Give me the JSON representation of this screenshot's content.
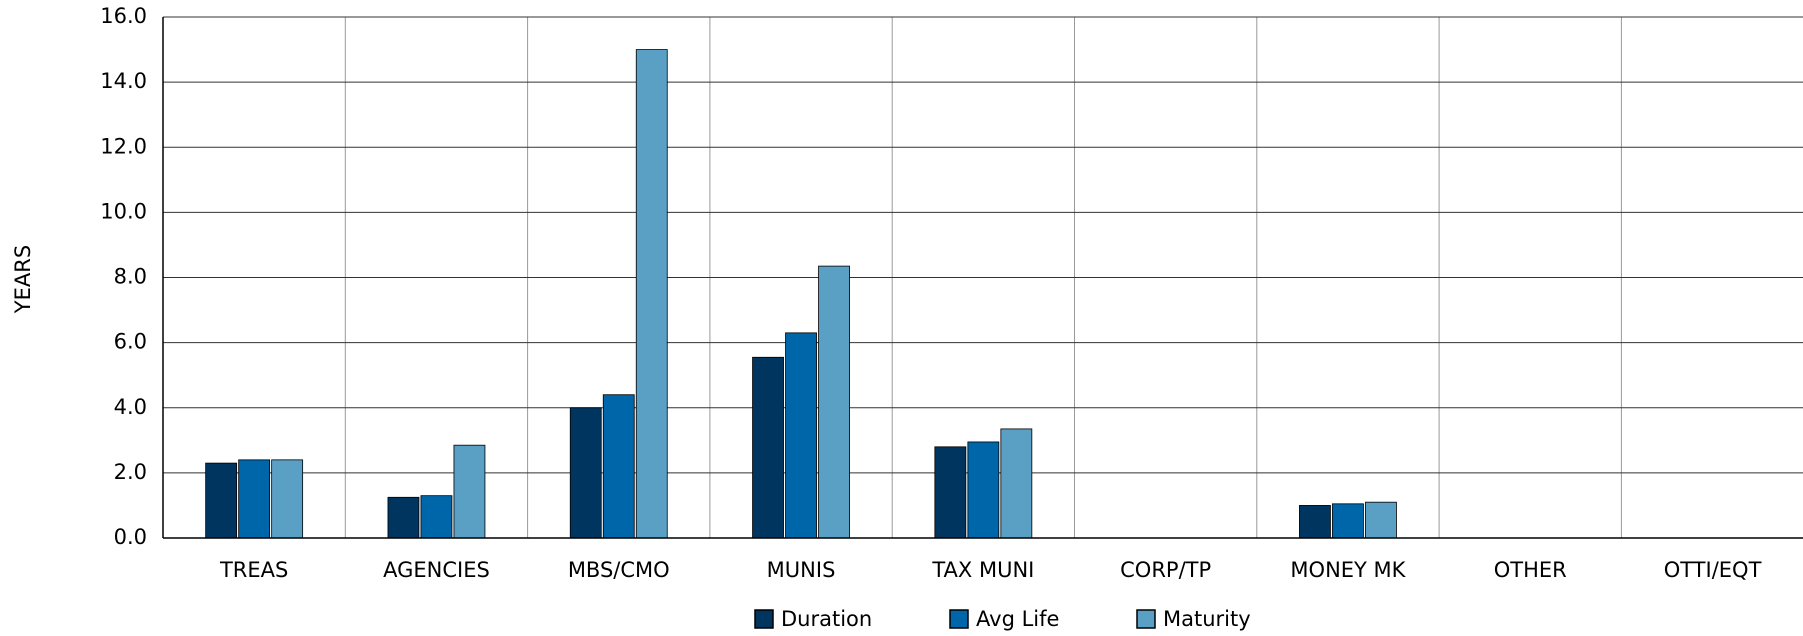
{
  "chart_data": {
    "type": "bar",
    "y_label": "YEARS",
    "categories": [
      "TREAS",
      "AGENCIES",
      "MBS/CMO",
      "MUNIS",
      "TAX MUNI",
      "CORP/TP",
      "MONEY MK",
      "OTHER",
      "OTTI/EQT"
    ],
    "series": [
      {
        "name": "Duration",
        "color": "#003560",
        "values": [
          2.3,
          1.25,
          4.0,
          5.55,
          2.8,
          0,
          1.0,
          0,
          0
        ]
      },
      {
        "name": "Avg Life",
        "color": "#0066aa",
        "values": [
          2.4,
          1.3,
          4.4,
          6.3,
          2.95,
          0,
          1.05,
          0,
          0
        ]
      },
      {
        "name": "Maturity",
        "color": "#5a9fc4",
        "values": [
          2.4,
          2.85,
          15.0,
          8.35,
          3.35,
          0,
          1.1,
          0,
          0
        ]
      }
    ],
    "ylim": [
      0,
      16
    ],
    "yticks": [
      {
        "value": 0,
        "label": "0.0"
      },
      {
        "value": 2,
        "label": "2.0"
      },
      {
        "value": 4,
        "label": "4.0"
      },
      {
        "value": 6,
        "label": "6.0"
      },
      {
        "value": 8,
        "label": "8.0"
      },
      {
        "value": 10,
        "label": "10.0"
      },
      {
        "value": 12,
        "label": "12.0"
      },
      {
        "value": 14,
        "label": "14.0"
      },
      {
        "value": 16,
        "label": "16.0"
      }
    ],
    "grid": true,
    "legend": "bottom"
  }
}
